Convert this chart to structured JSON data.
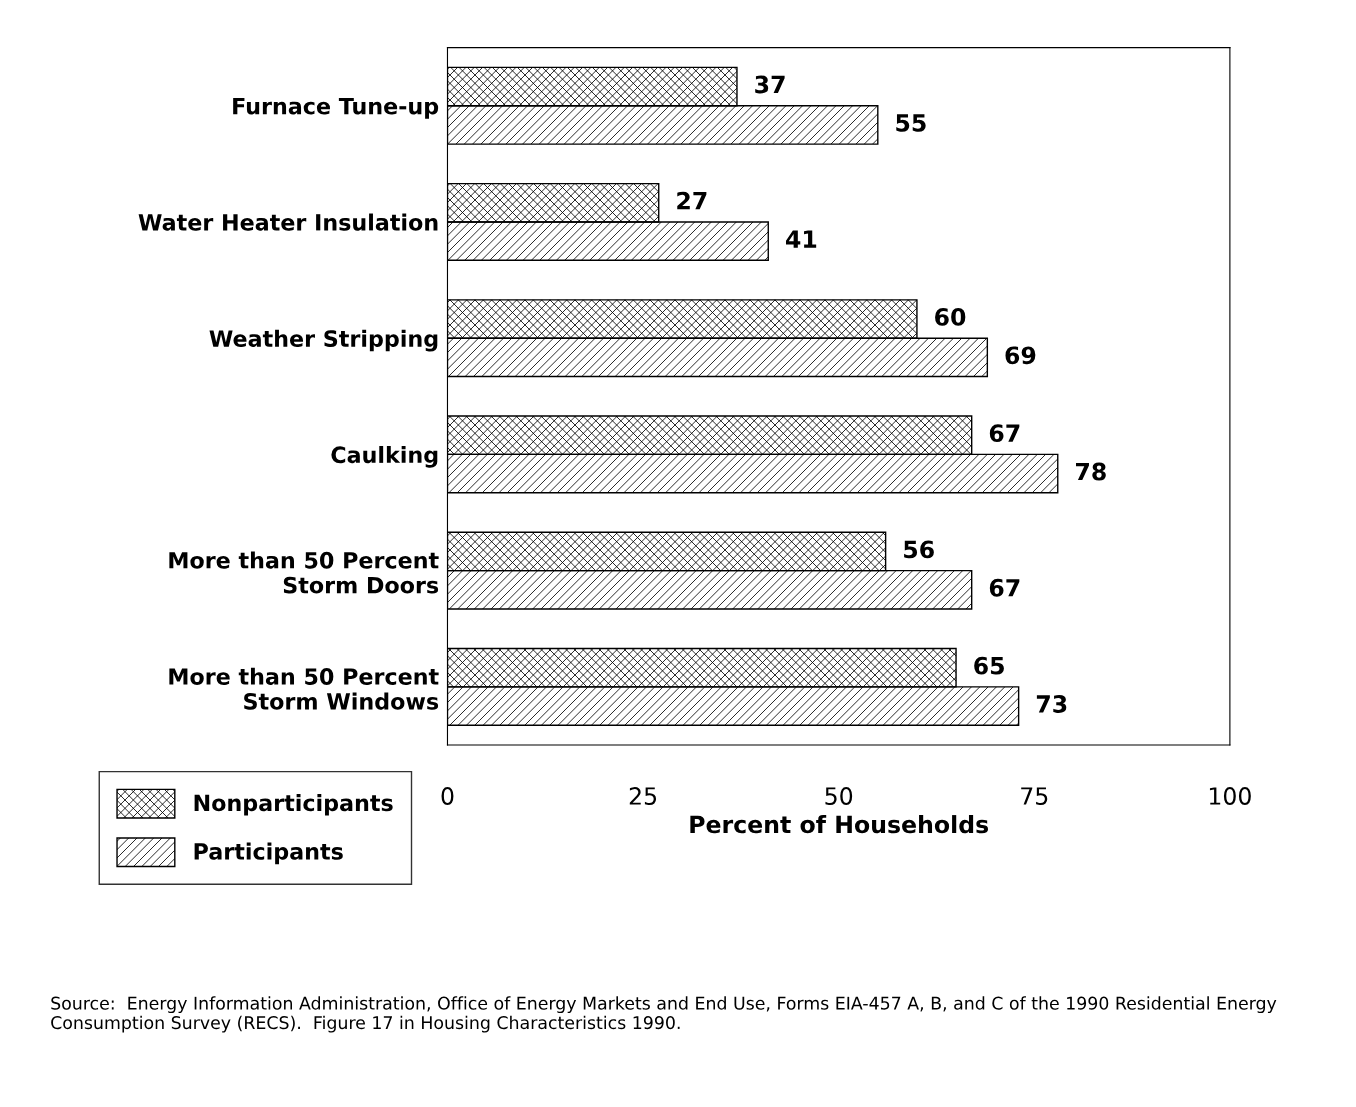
{
  "chart_data": {
    "type": "bar",
    "orientation": "horizontal",
    "xlabel": "Percent of Households",
    "categories": [
      "Furnace Tune-up",
      "Water Heater Insulation",
      "Weather Stripping",
      "Caulking",
      "More than 50 Percent\nStorm Doors",
      "More than 50 Percent\nStorm Windows"
    ],
    "series": [
      {
        "name": "Nonparticipants",
        "color": "#000000",
        "values": [
          37,
          27,
          60,
          67,
          56,
          65
        ]
      },
      {
        "name": "Participants",
        "color": "#000000",
        "values": [
          55,
          41,
          69,
          78,
          67,
          73
        ]
      }
    ],
    "xlim": [
      0,
      100
    ],
    "xticks": [
      0,
      25,
      50,
      75,
      100
    ],
    "data_labels": true,
    "grid": false,
    "legend": "bottom left",
    "annotations": [
      "Source:  Energy Information Administration, Office of Energy Markets and End Use, Forms EIA-457 A, B, and C of the 1990 Residential Energy Consumption Survey (RECS).  Figure 17 in Housing Characteristics 1990."
    ]
  }
}
